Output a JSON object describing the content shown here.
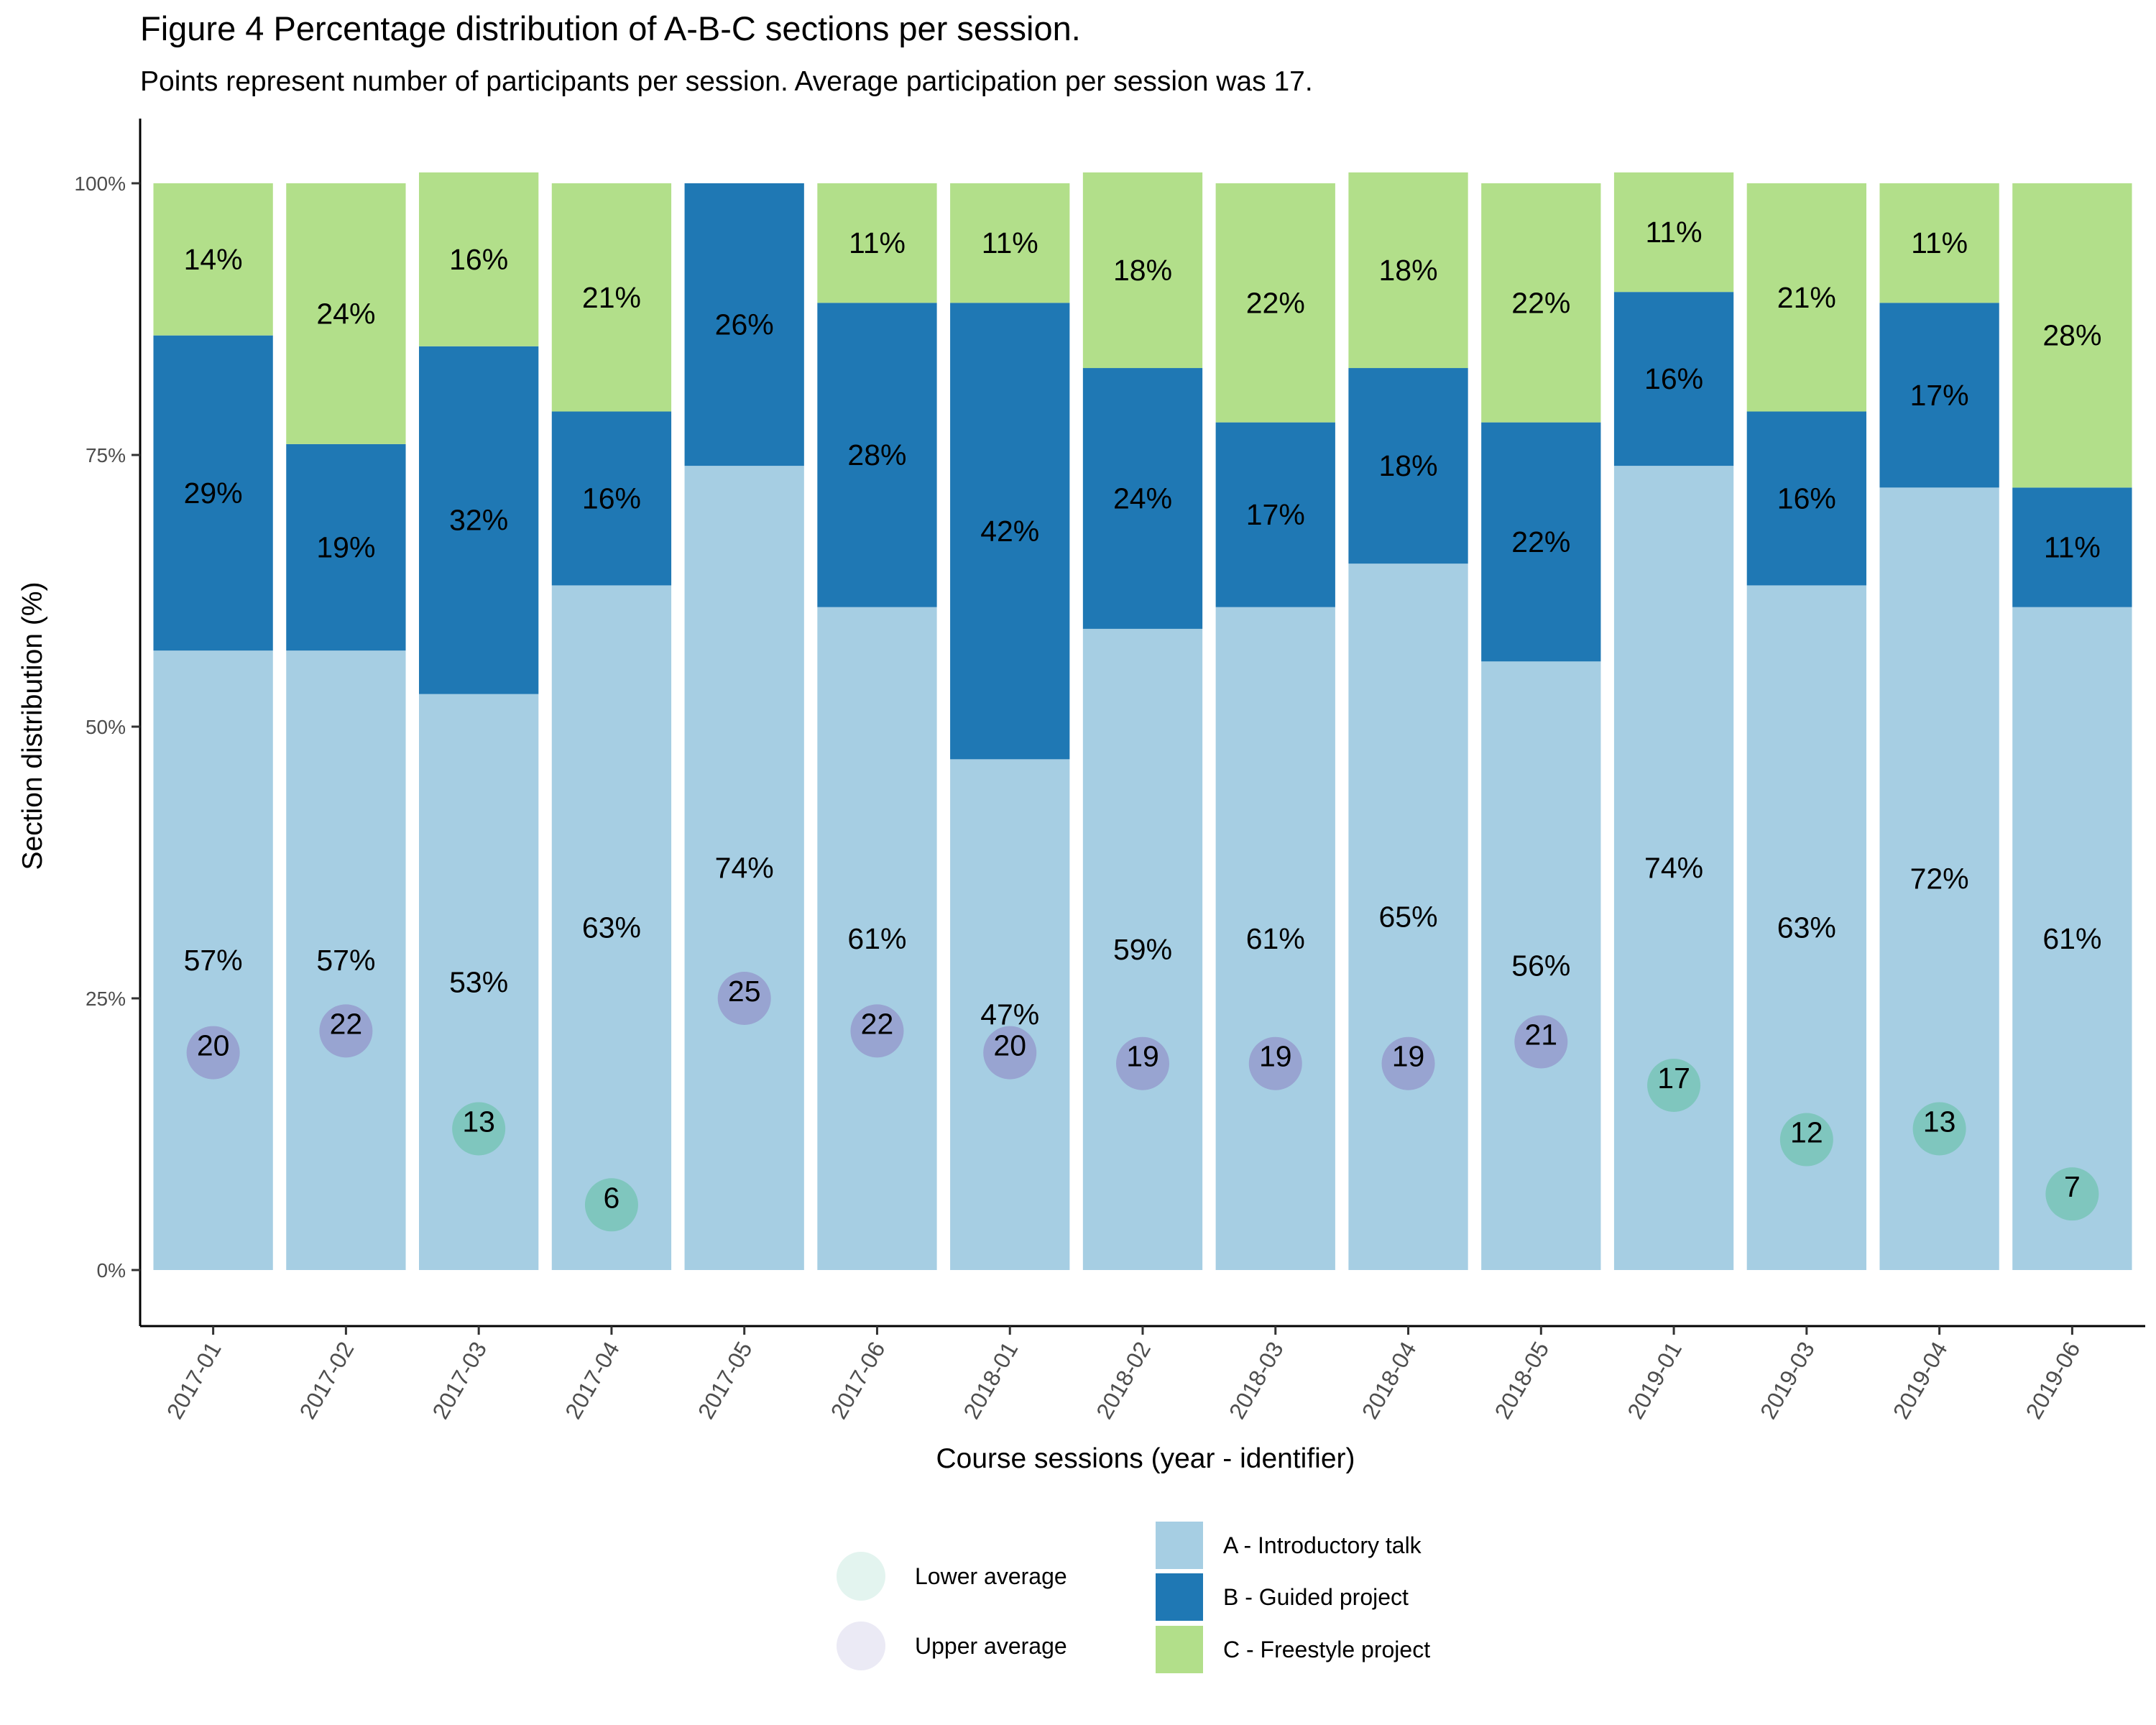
{
  "chart_data": {
    "type": "bar",
    "stacked": true,
    "title": "Figure 4 Percentage distribution of A-B-C sections per session.",
    "subtitle": "Points represent number of participants per session. Average participation per session was 17.",
    "xlabel": "Course sessions (year - identifier)",
    "ylabel": "Section distribution (%)",
    "ylim": [
      0,
      100
    ],
    "yticks": [
      "0%",
      "25%",
      "50%",
      "75%",
      "100%"
    ],
    "categories": [
      "2017-01",
      "2017-02",
      "2017-03",
      "2017-04",
      "2017-05",
      "2017-06",
      "2018-01",
      "2018-02",
      "2018-03",
      "2018-04",
      "2018-05",
      "2019-01",
      "2019-03",
      "2019-04",
      "2019-06"
    ],
    "series": [
      {
        "name": "A - Introductory talk",
        "color": "#a6cee3",
        "values": [
          57,
          57,
          53,
          63,
          74,
          61,
          47,
          59,
          61,
          65,
          56,
          74,
          63,
          72,
          61
        ]
      },
      {
        "name": "B - Guided project",
        "color": "#1f78b4",
        "values": [
          29,
          19,
          32,
          16,
          26,
          28,
          42,
          24,
          17,
          18,
          22,
          16,
          16,
          17,
          11
        ]
      },
      {
        "name": "C - Freestyle project",
        "color": "#b2df8a",
        "values": [
          14,
          24,
          16,
          21,
          0,
          11,
          11,
          18,
          22,
          18,
          22,
          11,
          21,
          11,
          28
        ]
      }
    ],
    "participants": [
      20,
      22,
      13,
      6,
      25,
      22,
      20,
      19,
      19,
      19,
      21,
      17,
      12,
      13,
      7
    ],
    "participant_groups": [
      "Upper average",
      "Upper average",
      "Lower average",
      "Lower average",
      "Upper average",
      "Upper average",
      "Upper average",
      "Upper average",
      "Upper average",
      "Upper average",
      "Upper average",
      "Lower average",
      "Lower average",
      "Lower average",
      "Lower average"
    ],
    "point_legend": [
      {
        "name": "Lower average",
        "color": "#66c2a5"
      },
      {
        "name": "Upper average",
        "color": "#8f88c5"
      }
    ]
  }
}
